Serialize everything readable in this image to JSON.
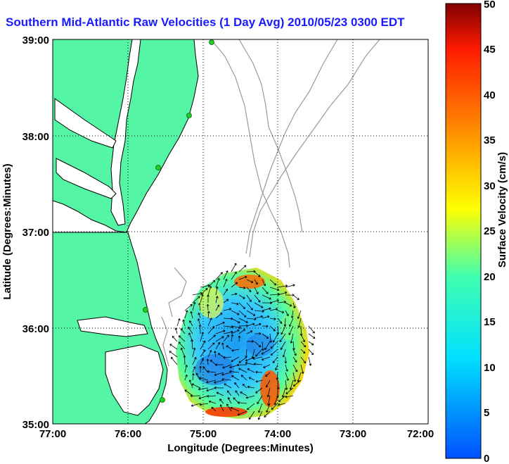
{
  "title": "Southern Mid-Atlantic Raw Velocities (1 Day Avg) 2010/05/23 0300 EDT",
  "xaxis": {
    "label": "Longitude (Degrees:Minutes)",
    "ticks": [
      "77:00",
      "76:00",
      "75:00",
      "74:00",
      "73:00",
      "72:00"
    ]
  },
  "yaxis": {
    "label": "Latitude (Degrees:Minutes)",
    "ticks": [
      "39:00",
      "38:00",
      "37:00",
      "36:00",
      "35:00"
    ]
  },
  "colorbar": {
    "label": "Surface Velocity (cm/s)",
    "ticks": [
      "50",
      "45",
      "40",
      "35",
      "30",
      "25",
      "20",
      "15",
      "10",
      "5",
      "0"
    ]
  },
  "colors": {
    "land": "#55f5a6",
    "coast": "#000000",
    "bathymetry": "#9a9a9a",
    "station": "#22cc22",
    "title": "#1a1aff"
  }
}
